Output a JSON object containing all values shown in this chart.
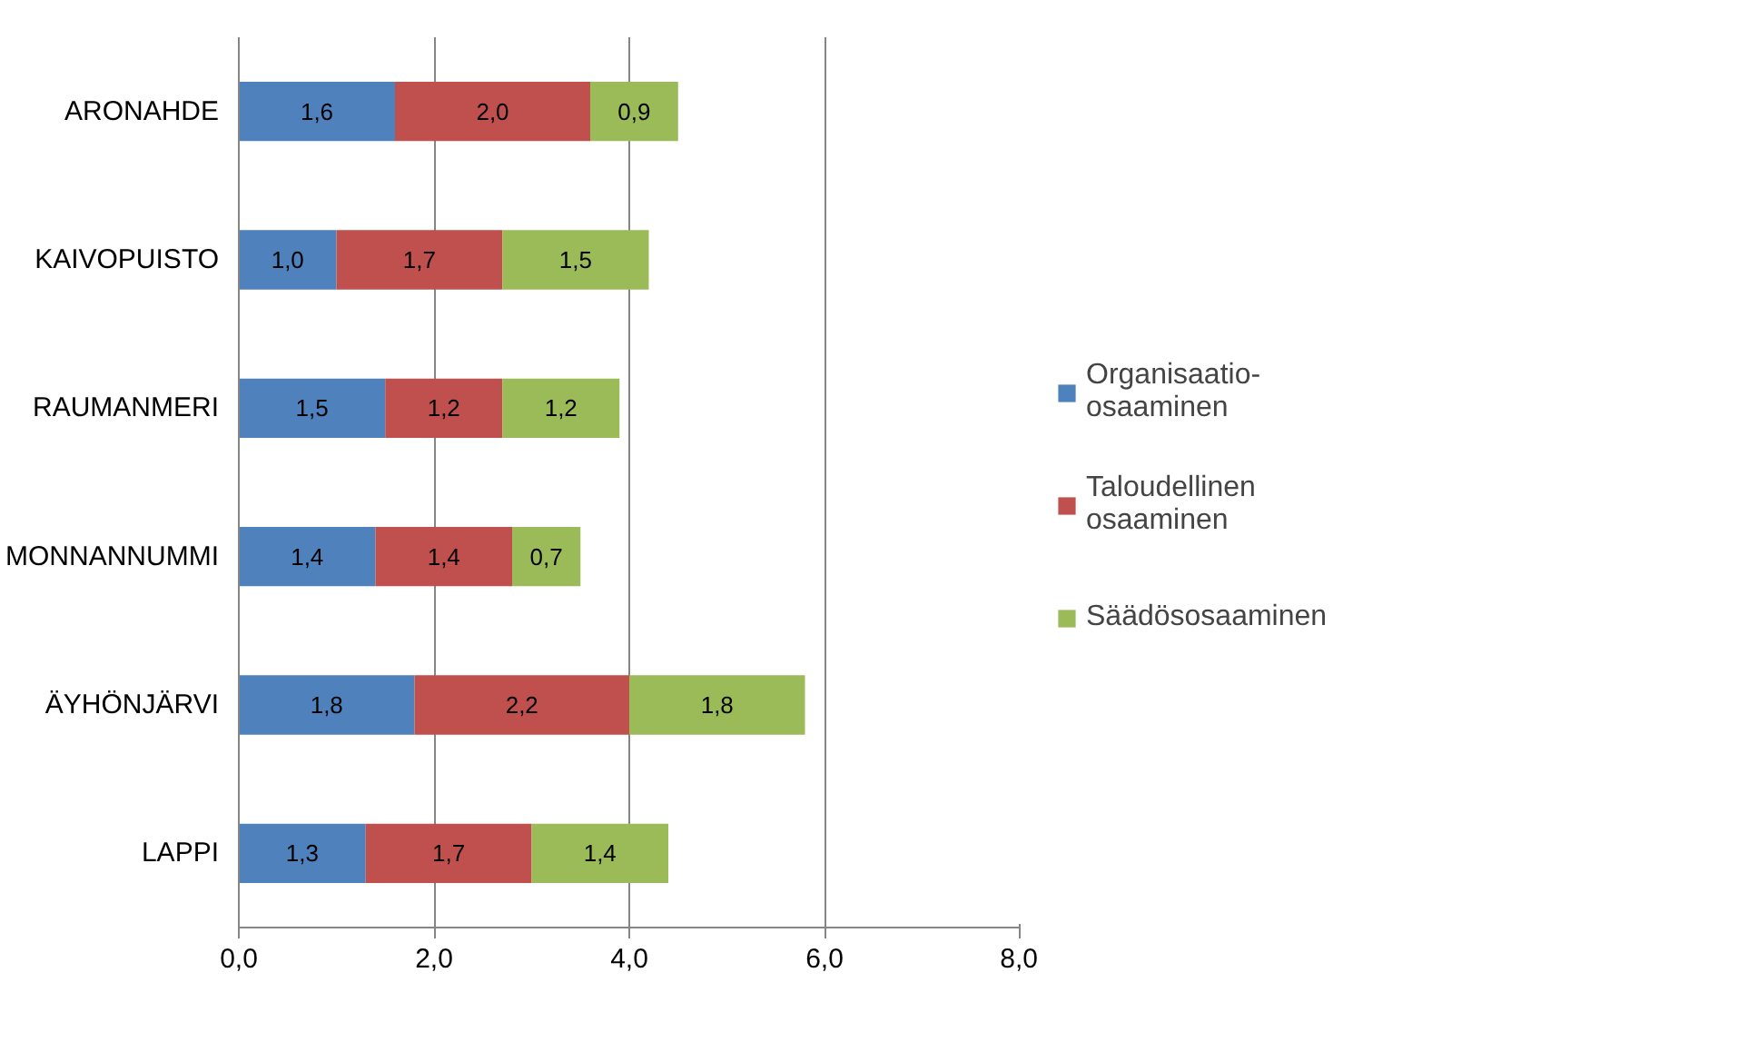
{
  "chart_data": {
    "type": "bar",
    "orientation": "horizontal",
    "stacked": true,
    "categories": [
      "ARONAHDE",
      "KAIVOPUISTO",
      "RAUMANMERI",
      "MONNANNUMMI",
      "ÄYHÖNJÄRVI",
      "LAPPI"
    ],
    "series": [
      {
        "name": "Organisaatio-\nosaaminen",
        "color": "#4f81bd",
        "values": [
          1.6,
          1.0,
          1.5,
          1.4,
          1.8,
          1.3
        ],
        "value_labels": [
          "1,6",
          "1,0",
          "1,5",
          "1,4",
          "1,8",
          "1,3"
        ]
      },
      {
        "name": "Taloudellinen\nosaaminen",
        "color": "#c0504d",
        "values": [
          2.0,
          1.7,
          1.2,
          1.4,
          2.2,
          1.7
        ],
        "value_labels": [
          "2,0",
          "1,7",
          "1,2",
          "1,4",
          "2,2",
          "1,7"
        ]
      },
      {
        "name": "Säädösosaaminen",
        "color": "#9bbb59",
        "values": [
          0.9,
          1.5,
          1.2,
          0.7,
          1.8,
          1.4
        ],
        "value_labels": [
          "0,9",
          "1,5",
          "1,2",
          "0,7",
          "1,8",
          "1,4"
        ]
      }
    ],
    "xlim": [
      0,
      8
    ],
    "xticks": [
      {
        "value": 0,
        "label": "0,0"
      },
      {
        "value": 2,
        "label": "2,0"
      },
      {
        "value": 4,
        "label": "4,0"
      },
      {
        "value": 6,
        "label": "6,0"
      },
      {
        "value": 8,
        "label": "8,0"
      }
    ],
    "grid": "x",
    "legend": "right"
  }
}
